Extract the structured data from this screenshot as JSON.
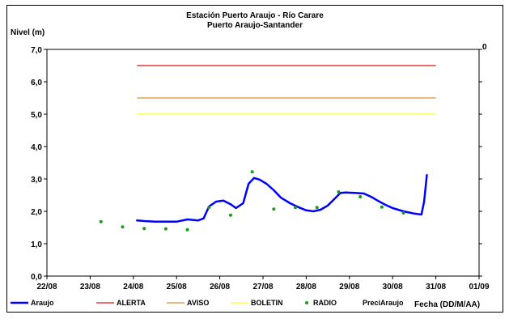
{
  "chart_data": {
    "type": "line",
    "title": "Estación Puerto Araujo - Río Carare",
    "subtitle": "Puerto Araujo-Santander",
    "ylabel": "Nivel (m)",
    "xlabel": "Fecha (DD/M/AA)",
    "y2_tick_label": "0",
    "ylim": [
      0,
      7
    ],
    "xlim": [
      "2008-08-22",
      "2008-09-01"
    ],
    "y_ticks": [
      "0,0",
      "1,0",
      "2,0",
      "3,0",
      "4,0",
      "5,0",
      "6,0",
      "7,0"
    ],
    "x_ticks": [
      "22/08",
      "23/08",
      "24/08",
      "25/08",
      "26/08",
      "27/08",
      "28/08",
      "29/08",
      "30/08",
      "31/08",
      "01/09"
    ],
    "grid": false,
    "legend_position": "bottom",
    "colors": {
      "Araujo": "#0000ff",
      "ALERTA": "#e03c3c",
      "AVISO": "#e0a050",
      "BOLETIN": "#ffff40",
      "RADIO": "#1a9a1a",
      "PreciAraujo": "#000000"
    },
    "series": [
      {
        "name": "Araujo",
        "kind": "line",
        "points": [
          [
            "24/08 02:00",
            1.72
          ],
          [
            "24/08 06:00",
            1.7
          ],
          [
            "24/08 12:00",
            1.68
          ],
          [
            "25/08 00:00",
            1.68
          ],
          [
            "25/08 06:00",
            1.75
          ],
          [
            "25/08 12:00",
            1.72
          ],
          [
            "25/08 15:00",
            1.78
          ],
          [
            "25/08 18:00",
            2.15
          ],
          [
            "25/08 22:00",
            2.3
          ],
          [
            "26/08 02:00",
            2.33
          ],
          [
            "26/08 06:00",
            2.22
          ],
          [
            "26/08 09:00",
            2.1
          ],
          [
            "26/08 13:00",
            2.25
          ],
          [
            "26/08 16:00",
            2.85
          ],
          [
            "26/08 19:00",
            3.03
          ],
          [
            "26/08 22:00",
            2.98
          ],
          [
            "27/08 02:00",
            2.85
          ],
          [
            "27/08 06:00",
            2.65
          ],
          [
            "27/08 10:00",
            2.42
          ],
          [
            "27/08 15:00",
            2.25
          ],
          [
            "27/08 20:00",
            2.12
          ],
          [
            "28/08 00:00",
            2.03
          ],
          [
            "28/08 04:00",
            2.0
          ],
          [
            "28/08 08:00",
            2.05
          ],
          [
            "28/08 12:00",
            2.18
          ],
          [
            "28/08 16:00",
            2.4
          ],
          [
            "28/08 19:00",
            2.57
          ],
          [
            "28/08 22:00",
            2.58
          ],
          [
            "29/08 03:00",
            2.57
          ],
          [
            "29/08 08:00",
            2.55
          ],
          [
            "29/08 12:00",
            2.45
          ],
          [
            "29/08 16:00",
            2.32
          ],
          [
            "29/08 20:00",
            2.2
          ],
          [
            "30/08 00:00",
            2.1
          ],
          [
            "30/08 06:00",
            2.0
          ],
          [
            "30/08 12:00",
            1.93
          ],
          [
            "30/08 16:00",
            1.9
          ],
          [
            "30/08 17:30",
            2.3
          ],
          [
            "30/08 19:00",
            3.12
          ]
        ]
      },
      {
        "name": "ALERTA",
        "kind": "line",
        "value": 6.5,
        "range": [
          "24/08 02:00",
          "31/08 00:00"
        ]
      },
      {
        "name": "AVISO",
        "kind": "line",
        "value": 5.5,
        "range": [
          "24/08 02:00",
          "31/08 00:00"
        ]
      },
      {
        "name": "BOLETIN",
        "kind": "line",
        "value": 5.0,
        "range": [
          "24/08 02:00",
          "31/08 00:00"
        ]
      },
      {
        "name": "RADIO",
        "kind": "scatter",
        "points": [
          [
            "23/08 06:00",
            1.68
          ],
          [
            "23/08 18:00",
            1.52
          ],
          [
            "24/08 06:00",
            1.47
          ],
          [
            "24/08 18:00",
            1.46
          ],
          [
            "25/08 06:00",
            1.43
          ],
          [
            "25/08 18:00",
            2.12
          ],
          [
            "26/08 06:00",
            1.88
          ],
          [
            "26/08 18:00",
            3.22
          ],
          [
            "27/08 06:00",
            2.07
          ],
          [
            "27/08 18:00",
            2.12
          ],
          [
            "28/08 06:00",
            2.12
          ],
          [
            "28/08 18:00",
            2.6
          ],
          [
            "29/08 06:00",
            2.45
          ],
          [
            "29/08 18:00",
            2.13
          ],
          [
            "30/08 06:00",
            1.95
          ]
        ]
      },
      {
        "name": "PreciAraujo",
        "kind": "bar",
        "values": []
      }
    ]
  }
}
